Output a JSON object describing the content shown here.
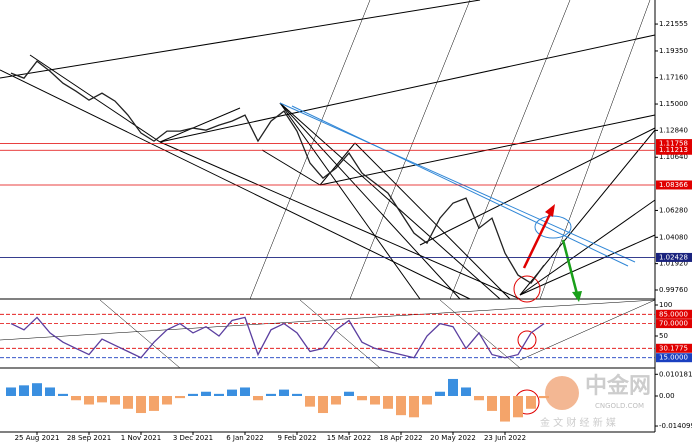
{
  "chart_data": [
    {
      "type": "line",
      "color": "#222222",
      "categories": [
        null,
        null,
        "25 Aug 2021",
        null,
        null,
        null,
        "28 Sep 2021",
        null,
        null,
        null,
        "1 Nov 2021",
        null,
        null,
        null,
        "3 Dec 2021",
        null,
        null,
        null,
        "6 Jan 2022",
        null,
        null,
        null,
        "9 Feb 2022",
        null,
        null,
        null,
        "15 Mar 2022",
        null,
        null,
        null,
        "18 Apr 2022",
        null,
        null,
        null,
        "20 May 2022",
        null,
        null,
        null,
        "23 Jun 2022",
        null,
        null,
        null,
        null,
        null,
        null,
        null,
        null,
        null,
        null,
        null
      ],
      "values": [
        1.1753,
        1.1712,
        1.1851,
        1.1769,
        1.1671,
        1.1605,
        1.1532,
        1.1589,
        1.1524,
        1.1409,
        1.1262,
        1.1196,
        1.1278,
        1.1278,
        1.1303,
        1.1286,
        1.1327,
        1.136,
        1.1409,
        1.1196,
        1.136,
        1.1442,
        1.1278,
        1.1016,
        1.0893,
        1.0975,
        1.1098,
        1.0934,
        1.0852,
        1.077,
        1.0606,
        1.0442,
        1.036,
        1.0565,
        1.0688,
        1.0729,
        1.0483,
        1.0565,
        1.0278,
        1.0098,
        1.0032,
        1.018,
        null,
        null,
        null,
        null,
        null,
        null,
        null,
        null
      ],
      "ylim": [
        0.99104,
        1.2328
      ],
      "yticks": [
        1.21555,
        {
          "value": 1.1935,
          "label": "1.19350"
        },
        {
          "value": 1.1716,
          "label": "1.17160"
        },
        {
          "value": 1.15,
          "label": "1.15000"
        },
        {
          "value": 1.1284,
          "label": "1.12840"
        },
        {
          "value": 1.1064,
          "label": "1.10640"
        },
        {
          "value": 1.0628,
          "label": "1.06280"
        },
        {
          "value": 1.0408,
          "label": "1.04080"
        },
        {
          "value": 1.0192,
          "label": "1.01920"
        },
        {
          "value": 0.9976,
          "label": "0.99760"
        }
      ],
      "levels": [
        {
          "value": 1.11758,
          "color": "#e00000"
        },
        {
          "value": 1.11213,
          "color": "#e00000"
        },
        {
          "value": 1.08366,
          "color": "#e00000"
        },
        {
          "value": 1.02428,
          "color": "#1a237e"
        }
      ]
    },
    {
      "type": "line",
      "color": "#5b3fa0",
      "values": [
        70,
        60,
        80,
        55,
        40,
        30,
        20,
        45,
        35,
        25,
        15,
        40,
        60,
        70,
        55,
        65,
        50,
        75,
        80,
        20,
        60,
        70,
        55,
        25,
        30,
        60,
        75,
        40,
        30,
        25,
        20,
        15,
        50,
        70,
        65,
        30,
        55,
        20,
        15,
        20,
        55,
        70,
        null,
        null,
        null,
        null,
        null,
        null,
        null,
        null
      ],
      "ylim": [
        0,
        100
      ],
      "yticks": [
        100,
        50
      ],
      "levels": [
        {
          "value": 85,
          "label": "85.0000",
          "color": "#e00000"
        },
        {
          "value": 70,
          "label": "70.0000",
          "color": "#e00000"
        },
        {
          "value": 30.1775,
          "color": "#e00000"
        },
        {
          "value": 15,
          "label": "15.0000",
          "color": "#1a3fc0"
        }
      ]
    },
    {
      "type": "bar",
      "color": "#3a8fe0",
      "negative_color": "#f4a46a",
      "values": [
        0.004,
        0.005,
        0.006,
        0.004,
        0.001,
        -0.002,
        -0.004,
        -0.003,
        -0.004,
        -0.006,
        -0.008,
        -0.007,
        -0.004,
        -0.001,
        0.001,
        0.002,
        0.001,
        0.003,
        0.004,
        -0.002,
        0.001,
        0.003,
        0.001,
        -0.005,
        -0.008,
        -0.004,
        0.002,
        -0.002,
        -0.004,
        -0.006,
        -0.009,
        -0.01,
        -0.004,
        0.002,
        0.008,
        0.004,
        -0.002,
        -0.007,
        -0.012,
        -0.01,
        -0.006,
        -0.001,
        null,
        null,
        null,
        null,
        null,
        null,
        null,
        null
      ],
      "ylim": [
        -0.0169,
        0.0122
      ],
      "yticks": [
        0.0101819,
        {
          "value": 0,
          "label": "0.00"
        },
        {
          "value": -0.014099,
          "label": "-0.0140990"
        }
      ]
    }
  ],
  "watermark": {
    "brand": "中金网",
    "site": "CNGOLD.COM",
    "tagline": "金 文 财 经 新 媒"
  }
}
